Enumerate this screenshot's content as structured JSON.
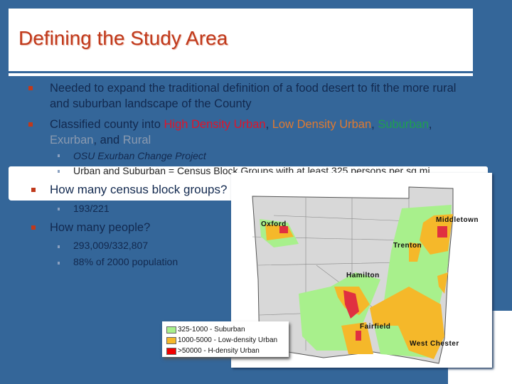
{
  "title": "Defining the Study Area",
  "bullets": [
    {
      "text": "Needed to expand the traditional definition of a food desert to fit the more rural and suburban landscape of the County"
    },
    {
      "prefix": "Classified county into ",
      "high": "High Density Urban",
      "sep1": ", ",
      "low": "Low Density Urban",
      "sep2": ", ",
      "sub": "Suburban",
      "sep3": ",",
      "exurban": "Exurban",
      "sep4": ", and ",
      "rural": "Rural",
      "subitems": [
        "OSU Exurban Change Project",
        "Urban and Suburban = Census Block Groups with at least 325 persons per sq mi"
      ]
    },
    {
      "text": "How many census block groups?",
      "subitems": [
        "193/221"
      ]
    },
    {
      "text": "How many people?",
      "subitems": [
        "293,009/332,807",
        "88% of 2000 population"
      ]
    }
  ],
  "map": {
    "places": [
      "Oxford",
      "Middletown",
      "Trenton",
      "Hamilton",
      "Fairfield",
      "West Chester"
    ],
    "legend": [
      {
        "label": "325-1000 - Suburban",
        "color": "#a8f08c"
      },
      {
        "label": "1000-5000 - Low-density Urban",
        "color": "#f5b82a"
      },
      {
        "label": ">50000 - H-density Urban",
        "color": "#f00000"
      }
    ]
  },
  "colors": {
    "background": "#346699",
    "title": "#c0391b",
    "high": "#e0142a",
    "low": "#e07a30",
    "suburban": "#1fa050",
    "muted": "#8a9ab0"
  }
}
